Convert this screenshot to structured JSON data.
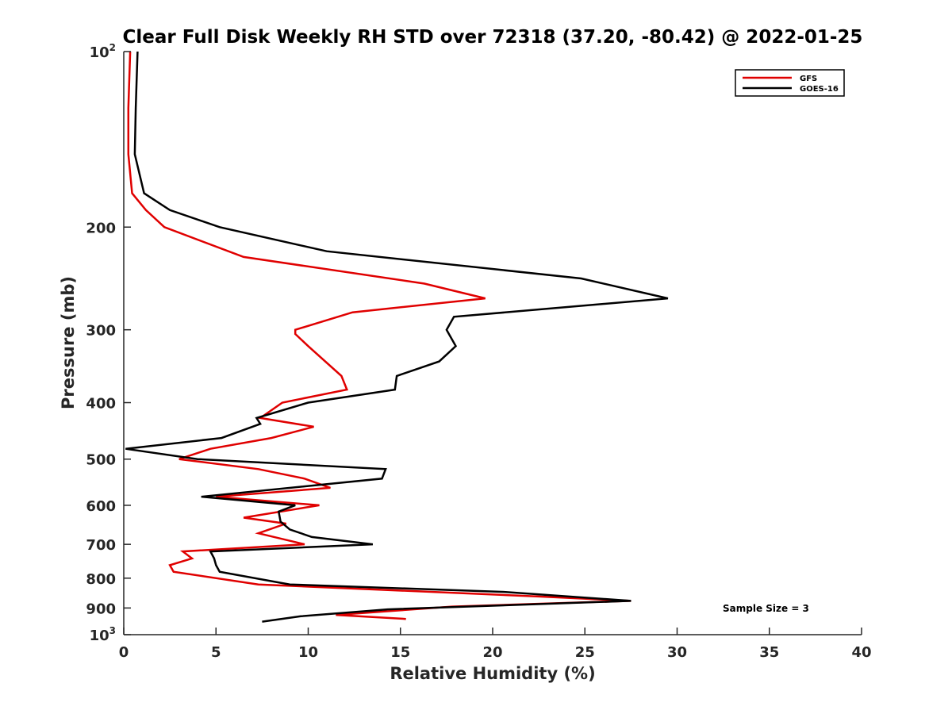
{
  "chart_data": {
    "type": "line",
    "title": "Clear Full Disk Weekly RH STD over 72318 (37.20, -80.42) @ 2022-01-25",
    "xlabel": "Relative Humidity (%)",
    "ylabel": "Pressure (mb)",
    "xlim": [
      0,
      40
    ],
    "ylim": [
      100,
      1000
    ],
    "y_scale": "log",
    "y_reversed": true,
    "grid": false,
    "legend_position": "top-right",
    "x_ticks": [
      "0",
      "5",
      "10",
      "15",
      "20",
      "25",
      "30",
      "35",
      "40"
    ],
    "y_ticks": [
      {
        "value": 100,
        "base": "10",
        "exp": "2"
      },
      {
        "value": 200,
        "label": "200"
      },
      {
        "value": 300,
        "label": "300"
      },
      {
        "value": 400,
        "label": "400"
      },
      {
        "value": 500,
        "label": "500"
      },
      {
        "value": 600,
        "label": "600"
      },
      {
        "value": 700,
        "label": "700"
      },
      {
        "value": 800,
        "label": "800"
      },
      {
        "value": 900,
        "label": "900"
      },
      {
        "value": 1000,
        "base": "10",
        "exp": "3"
      }
    ],
    "annotation": "Sample Size = 3",
    "series": [
      {
        "name": "GFS",
        "color": "#e00000",
        "points": [
          [
            0.35,
            100
          ],
          [
            0.25,
            125
          ],
          [
            0.25,
            150
          ],
          [
            0.45,
            175
          ],
          [
            1.2,
            187
          ],
          [
            2.2,
            200
          ],
          [
            6.5,
            225
          ],
          [
            16.3,
            250
          ],
          [
            19.6,
            265
          ],
          [
            12.4,
            280
          ],
          [
            9.3,
            300
          ],
          [
            9.3,
            305
          ],
          [
            10.0,
            320
          ],
          [
            11.8,
            360
          ],
          [
            12.1,
            380
          ],
          [
            8.6,
            400
          ],
          [
            7.4,
            425
          ],
          [
            10.3,
            440
          ],
          [
            8.0,
            460
          ],
          [
            4.7,
            480
          ],
          [
            3.0,
            500
          ],
          [
            7.3,
            520
          ],
          [
            9.8,
            540
          ],
          [
            11.2,
            560
          ],
          [
            5.0,
            580
          ],
          [
            10.6,
            600
          ],
          [
            6.5,
            630
          ],
          [
            8.8,
            645
          ],
          [
            7.3,
            670
          ],
          [
            9.8,
            700
          ],
          [
            3.2,
            720
          ],
          [
            3.7,
            740
          ],
          [
            2.5,
            760
          ],
          [
            2.7,
            780
          ],
          [
            7.3,
            820
          ],
          [
            22.5,
            860
          ],
          [
            27.5,
            875
          ],
          [
            17.8,
            895
          ],
          [
            11.5,
            925
          ],
          [
            15.3,
            940
          ]
        ]
      },
      {
        "name": "GOES-16",
        "color": "#000000",
        "points": [
          [
            0.75,
            100
          ],
          [
            0.65,
            125
          ],
          [
            0.6,
            150
          ],
          [
            1.1,
            175
          ],
          [
            2.5,
            187
          ],
          [
            5.2,
            200
          ],
          [
            11.0,
            220
          ],
          [
            24.8,
            245
          ],
          [
            29.5,
            265
          ],
          [
            17.9,
            285
          ],
          [
            17.5,
            300
          ],
          [
            18.0,
            320
          ],
          [
            17.1,
            340
          ],
          [
            14.8,
            360
          ],
          [
            14.7,
            380
          ],
          [
            10.0,
            400
          ],
          [
            7.2,
            425
          ],
          [
            7.4,
            435
          ],
          [
            5.3,
            460
          ],
          [
            0.1,
            480
          ],
          [
            4.0,
            500
          ],
          [
            14.2,
            520
          ],
          [
            14.0,
            540
          ],
          [
            4.2,
            580
          ],
          [
            9.3,
            600
          ],
          [
            8.4,
            615
          ],
          [
            8.5,
            640
          ],
          [
            9.0,
            660
          ],
          [
            10.2,
            680
          ],
          [
            13.5,
            700
          ],
          [
            4.7,
            720
          ],
          [
            4.9,
            740
          ],
          [
            5.0,
            760
          ],
          [
            5.2,
            780
          ],
          [
            9.0,
            820
          ],
          [
            20.7,
            845
          ],
          [
            27.5,
            875
          ],
          [
            14.3,
            905
          ],
          [
            9.6,
            930
          ],
          [
            7.5,
            950
          ]
        ]
      }
    ]
  }
}
